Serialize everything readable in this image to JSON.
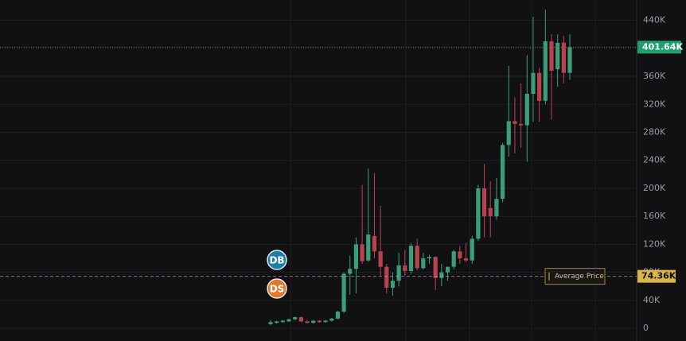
{
  "chart_data": {
    "type": "candlestick",
    "ylim": [
      -18000,
      469000
    ],
    "yticks": [
      {
        "value": 0,
        "label": "0"
      },
      {
        "value": 40000,
        "label": "40K"
      },
      {
        "value": 80000,
        "label": "80K"
      },
      {
        "value": 120000,
        "label": "120K"
      },
      {
        "value": 160000,
        "label": "160K"
      },
      {
        "value": 200000,
        "label": "200K"
      },
      {
        "value": 240000,
        "label": "240K"
      },
      {
        "value": 280000,
        "label": "280K"
      },
      {
        "value": 320000,
        "label": "320K"
      },
      {
        "value": 360000,
        "label": "360K"
      },
      {
        "value": 400000,
        "label": "400K"
      },
      {
        "value": 440000,
        "label": "440K"
      }
    ],
    "grid": true,
    "up_color": "#3a9e78",
    "down_color": "#b8434f",
    "open": [
      6000,
      8000,
      9000,
      10000,
      13000,
      16000,
      10000,
      8000,
      11000,
      9000,
      11000,
      14000,
      24000,
      78000,
      85000,
      120000,
      97000,
      132000,
      110000,
      88000,
      58000,
      68000,
      90000,
      82000,
      118000,
      86000,
      100000,
      102000,
      72000,
      80000,
      88000,
      110000,
      100000,
      97000,
      128000,
      200000,
      172000,
      160000,
      185000,
      262000,
      296000,
      292000,
      290000,
      335000,
      365000,
      325000,
      410000,
      370000,
      408000,
      365000
    ],
    "high": [
      12000,
      11000,
      12000,
      14000,
      17000,
      17000,
      12000,
      12000,
      12000,
      12000,
      15000,
      25000,
      80000,
      104000,
      130000,
      205000,
      228000,
      222000,
      175000,
      92000,
      80000,
      108000,
      112000,
      122000,
      128000,
      108000,
      105000,
      103000,
      92000,
      88000,
      112000,
      118000,
      122000,
      132000,
      205000,
      235000,
      210000,
      215000,
      265000,
      375000,
      330000,
      350000,
      390000,
      445000,
      372000,
      455000,
      420000,
      420000,
      418000,
      420000
    ],
    "low": [
      5000,
      7000,
      8000,
      9000,
      12000,
      9000,
      7000,
      7000,
      8000,
      8000,
      10000,
      13000,
      22000,
      48000,
      50000,
      92000,
      95000,
      100000,
      75000,
      50000,
      47000,
      60000,
      75000,
      78000,
      83000,
      84000,
      92000,
      55000,
      60000,
      68000,
      84000,
      92000,
      95000,
      92000,
      125000,
      130000,
      130000,
      155000,
      180000,
      245000,
      250000,
      258000,
      238000,
      295000,
      295000,
      320000,
      298000,
      345000,
      350000,
      355000
    ],
    "close": [
      9000,
      10000,
      11000,
      13000,
      16000,
      10000,
      8000,
      11000,
      9000,
      11000,
      14000,
      24000,
      78000,
      85000,
      120000,
      96000,
      134000,
      110000,
      88000,
      58000,
      68000,
      90000,
      82000,
      118000,
      86000,
      100000,
      102000,
      72000,
      80000,
      88000,
      110000,
      100000,
      97000,
      128000,
      200000,
      160000,
      160000,
      185000,
      262000,
      296000,
      292000,
      290000,
      335000,
      365000,
      325000,
      410000,
      368000,
      408000,
      365000,
      401640
    ],
    "last_price": {
      "value": 401640,
      "label": "401.64K",
      "color": "#1f9e6e"
    },
    "average_price": {
      "value": 74360,
      "label": "74.36K",
      "text": "Average Price",
      "color": "#d9b54a"
    },
    "markers": [
      {
        "label": "DB",
        "color": "#1c7fa8"
      },
      {
        "label": "DS",
        "color": "#e0782e"
      }
    ]
  }
}
